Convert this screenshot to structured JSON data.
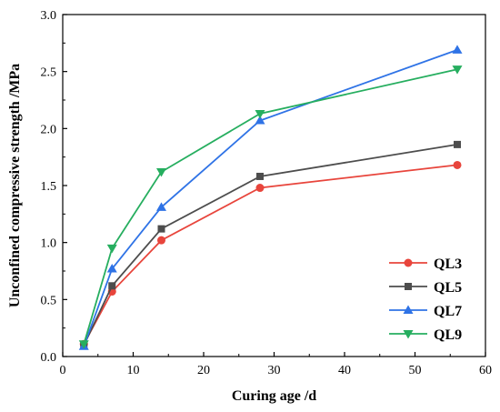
{
  "chart_data": {
    "type": "line",
    "xlabel": "Curing age /d",
    "ylabel": "Unconfined compressive strength /MPa",
    "xlim": [
      0,
      60
    ],
    "ylim": [
      0.0,
      3.0
    ],
    "x_ticks": [
      "0",
      "10",
      "20",
      "30",
      "40",
      "50",
      "60"
    ],
    "y_ticks": [
      "0.0",
      "0.5",
      "1.0",
      "1.5",
      "2.0",
      "2.5",
      "3.0"
    ],
    "grid": false,
    "legend_position": "bottom-right",
    "x": [
      3,
      7,
      14,
      28,
      56
    ],
    "series": [
      {
        "name": "QL3",
        "color": "#e8453c",
        "marker": "circle",
        "values": [
          0.11,
          0.57,
          1.02,
          1.48,
          1.68
        ]
      },
      {
        "name": "QL5",
        "color": "#4d4d4d",
        "marker": "square",
        "values": [
          0.1,
          0.62,
          1.12,
          1.58,
          1.86
        ]
      },
      {
        "name": "QL7",
        "color": "#2f73e6",
        "marker": "triangle-up",
        "values": [
          0.09,
          0.77,
          1.31,
          2.07,
          2.69
        ]
      },
      {
        "name": "QL9",
        "color": "#26ae5f",
        "marker": "triangle-down",
        "values": [
          0.11,
          0.95,
          1.62,
          2.13,
          2.52
        ]
      }
    ]
  }
}
